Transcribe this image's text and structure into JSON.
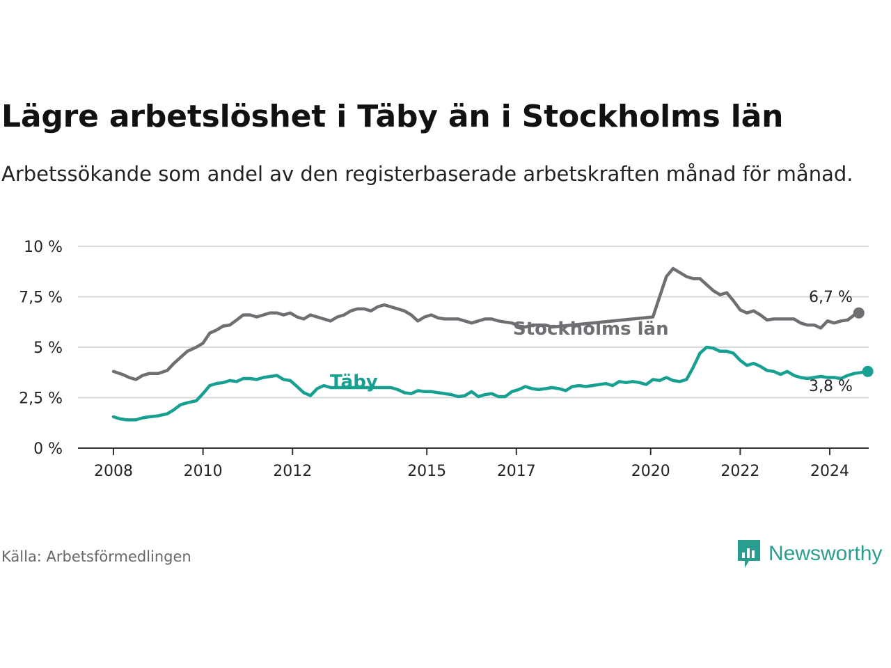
{
  "title": "Lägre arbetslöshet i Täby än i Stockholms län",
  "subtitle": "Arbetssökande som andel av den registerbaserade arbetskraften månad för månad.",
  "source": "Källa: Arbetsförmedlingen",
  "brand": "Newsworthy",
  "colors": {
    "stockholm": "#6e6e73",
    "taby": "#17a091",
    "grid": "#d8d8d8",
    "axis": "#333333",
    "brand": "#2a9d8f"
  },
  "chart_data": {
    "type": "line",
    "ylim": [
      0,
      10
    ],
    "xlim": [
      2008.0,
      2025.0
    ],
    "y_ticks": [
      {
        "value": 0,
        "label": "0 %"
      },
      {
        "value": 2.5,
        "label": "2,5 %"
      },
      {
        "value": 5,
        "label": "5 %"
      },
      {
        "value": 7.5,
        "label": "7,5 %"
      },
      {
        "value": 10,
        "label": "10 %"
      }
    ],
    "x_ticks": [
      {
        "value": 2008,
        "label": "2008"
      },
      {
        "value": 2010,
        "label": "2010"
      },
      {
        "value": 2012,
        "label": "2012"
      },
      {
        "value": 2015,
        "label": "2015"
      },
      {
        "value": 2017,
        "label": "2017"
      },
      {
        "value": 2020,
        "label": "2020"
      },
      {
        "value": 2022,
        "label": "2022"
      },
      {
        "value": 2024,
        "label": "2024"
      }
    ],
    "series": [
      {
        "key": "stockholm",
        "name": "Stockholms län",
        "end_label": "6,7 %",
        "gaps": [
          [
            2016.95,
            2019.95
          ]
        ],
        "points": [
          [
            2008.0,
            3.8
          ],
          [
            2008.2,
            3.65
          ],
          [
            2008.35,
            3.5
          ],
          [
            2008.5,
            3.4
          ],
          [
            2008.65,
            3.6
          ],
          [
            2008.8,
            3.7
          ],
          [
            2009.0,
            3.7
          ],
          [
            2009.2,
            3.85
          ],
          [
            2009.35,
            4.2
          ],
          [
            2009.5,
            4.5
          ],
          [
            2009.65,
            4.8
          ],
          [
            2009.85,
            5.0
          ],
          [
            2010.0,
            5.2
          ],
          [
            2010.15,
            5.7
          ],
          [
            2010.3,
            5.85
          ],
          [
            2010.45,
            6.05
          ],
          [
            2010.6,
            6.1
          ],
          [
            2010.75,
            6.35
          ],
          [
            2010.9,
            6.6
          ],
          [
            2011.05,
            6.6
          ],
          [
            2011.2,
            6.5
          ],
          [
            2011.35,
            6.6
          ],
          [
            2011.5,
            6.7
          ],
          [
            2011.65,
            6.7
          ],
          [
            2011.8,
            6.6
          ],
          [
            2011.95,
            6.7
          ],
          [
            2012.1,
            6.5
          ],
          [
            2012.25,
            6.4
          ],
          [
            2012.4,
            6.6
          ],
          [
            2012.55,
            6.5
          ],
          [
            2012.7,
            6.4
          ],
          [
            2012.85,
            6.3
          ],
          [
            2013.0,
            6.5
          ],
          [
            2013.15,
            6.6
          ],
          [
            2013.3,
            6.8
          ],
          [
            2013.45,
            6.9
          ],
          [
            2013.6,
            6.9
          ],
          [
            2013.75,
            6.8
          ],
          [
            2013.9,
            7.0
          ],
          [
            2014.05,
            7.1
          ],
          [
            2014.2,
            7.0
          ],
          [
            2014.35,
            6.9
          ],
          [
            2014.5,
            6.8
          ],
          [
            2014.65,
            6.6
          ],
          [
            2014.8,
            6.3
          ],
          [
            2014.95,
            6.5
          ],
          [
            2015.1,
            6.6
          ],
          [
            2015.25,
            6.45
          ],
          [
            2015.4,
            6.4
          ],
          [
            2015.55,
            6.4
          ],
          [
            2015.7,
            6.4
          ],
          [
            2015.85,
            6.3
          ],
          [
            2016.0,
            6.2
          ],
          [
            2016.15,
            6.3
          ],
          [
            2016.3,
            6.4
          ],
          [
            2016.45,
            6.4
          ],
          [
            2016.6,
            6.3
          ],
          [
            2016.75,
            6.25
          ],
          [
            2016.9,
            6.2
          ],
          [
            2017.05,
            6.05
          ],
          [
            2017.2,
            6.0
          ],
          [
            2017.35,
            6.1
          ],
          [
            2017.5,
            6.1
          ],
          [
            2017.65,
            6.1
          ],
          [
            2017.8,
            6.0
          ],
          [
            2020.05,
            6.5
          ],
          [
            2020.2,
            7.5
          ],
          [
            2020.35,
            8.5
          ],
          [
            2020.5,
            8.9
          ],
          [
            2020.65,
            8.7
          ],
          [
            2020.8,
            8.5
          ],
          [
            2020.95,
            8.4
          ],
          [
            2021.1,
            8.4
          ],
          [
            2021.25,
            8.1
          ],
          [
            2021.4,
            7.8
          ],
          [
            2021.55,
            7.6
          ],
          [
            2021.7,
            7.7
          ],
          [
            2021.85,
            7.3
          ],
          [
            2022.0,
            6.85
          ],
          [
            2022.15,
            6.7
          ],
          [
            2022.3,
            6.8
          ],
          [
            2022.45,
            6.6
          ],
          [
            2022.6,
            6.35
          ],
          [
            2022.75,
            6.4
          ],
          [
            2022.9,
            6.4
          ],
          [
            2023.05,
            6.4
          ],
          [
            2023.2,
            6.4
          ],
          [
            2023.35,
            6.2
          ],
          [
            2023.5,
            6.1
          ],
          [
            2023.65,
            6.1
          ],
          [
            2023.8,
            5.95
          ],
          [
            2023.95,
            6.3
          ],
          [
            2024.1,
            6.2
          ],
          [
            2024.25,
            6.3
          ],
          [
            2024.4,
            6.35
          ],
          [
            2024.55,
            6.6
          ],
          [
            2024.65,
            6.7
          ]
        ]
      },
      {
        "key": "taby",
        "name": "Täby",
        "end_label": "3,8 %",
        "gaps": [
          [
            2012.8,
            2014.0
          ]
        ],
        "points": [
          [
            2008.0,
            1.55
          ],
          [
            2008.15,
            1.45
          ],
          [
            2008.3,
            1.4
          ],
          [
            2008.5,
            1.4
          ],
          [
            2008.65,
            1.5
          ],
          [
            2008.8,
            1.55
          ],
          [
            2009.0,
            1.6
          ],
          [
            2009.2,
            1.7
          ],
          [
            2009.35,
            1.9
          ],
          [
            2009.5,
            2.15
          ],
          [
            2009.65,
            2.25
          ],
          [
            2009.85,
            2.35
          ],
          [
            2010.0,
            2.7
          ],
          [
            2010.15,
            3.1
          ],
          [
            2010.3,
            3.2
          ],
          [
            2010.45,
            3.25
          ],
          [
            2010.6,
            3.35
          ],
          [
            2010.75,
            3.3
          ],
          [
            2010.9,
            3.45
          ],
          [
            2011.05,
            3.45
          ],
          [
            2011.2,
            3.4
          ],
          [
            2011.35,
            3.5
          ],
          [
            2011.5,
            3.55
          ],
          [
            2011.65,
            3.6
          ],
          [
            2011.8,
            3.4
          ],
          [
            2011.95,
            3.35
          ],
          [
            2012.1,
            3.05
          ],
          [
            2012.25,
            2.75
          ],
          [
            2012.4,
            2.6
          ],
          [
            2012.55,
            2.95
          ],
          [
            2012.7,
            3.1
          ],
          [
            2012.85,
            3.0
          ],
          [
            2014.2,
            3.0
          ],
          [
            2014.35,
            2.9
          ],
          [
            2014.5,
            2.75
          ],
          [
            2014.65,
            2.7
          ],
          [
            2014.8,
            2.85
          ],
          [
            2014.95,
            2.8
          ],
          [
            2015.1,
            2.8
          ],
          [
            2015.25,
            2.75
          ],
          [
            2015.4,
            2.7
          ],
          [
            2015.55,
            2.65
          ],
          [
            2015.7,
            2.55
          ],
          [
            2015.85,
            2.6
          ],
          [
            2016.0,
            2.8
          ],
          [
            2016.15,
            2.55
          ],
          [
            2016.3,
            2.65
          ],
          [
            2016.45,
            2.7
          ],
          [
            2016.6,
            2.55
          ],
          [
            2016.75,
            2.55
          ],
          [
            2016.9,
            2.8
          ],
          [
            2017.05,
            2.9
          ],
          [
            2017.2,
            3.05
          ],
          [
            2017.35,
            2.95
          ],
          [
            2017.5,
            2.9
          ],
          [
            2017.65,
            2.95
          ],
          [
            2017.8,
            3.0
          ],
          [
            2017.95,
            2.95
          ],
          [
            2018.1,
            2.85
          ],
          [
            2018.25,
            3.05
          ],
          [
            2018.4,
            3.1
          ],
          [
            2018.55,
            3.05
          ],
          [
            2018.7,
            3.1
          ],
          [
            2018.85,
            3.15
          ],
          [
            2019.0,
            3.2
          ],
          [
            2019.15,
            3.1
          ],
          [
            2019.3,
            3.3
          ],
          [
            2019.45,
            3.25
          ],
          [
            2019.6,
            3.3
          ],
          [
            2019.75,
            3.25
          ],
          [
            2019.9,
            3.15
          ],
          [
            2020.05,
            3.4
          ],
          [
            2020.2,
            3.35
          ],
          [
            2020.35,
            3.5
          ],
          [
            2020.5,
            3.35
          ],
          [
            2020.65,
            3.3
          ],
          [
            2020.8,
            3.4
          ],
          [
            2020.95,
            4.0
          ],
          [
            2021.1,
            4.7
          ],
          [
            2021.25,
            5.0
          ],
          [
            2021.4,
            4.95
          ],
          [
            2021.55,
            4.8
          ],
          [
            2021.7,
            4.8
          ],
          [
            2021.85,
            4.7
          ],
          [
            2022.0,
            4.35
          ],
          [
            2022.15,
            4.1
          ],
          [
            2022.3,
            4.2
          ],
          [
            2022.45,
            4.05
          ],
          [
            2022.6,
            3.85
          ],
          [
            2022.75,
            3.8
          ],
          [
            2022.9,
            3.65
          ],
          [
            2023.05,
            3.8
          ],
          [
            2023.2,
            3.6
          ],
          [
            2023.35,
            3.5
          ],
          [
            2023.5,
            3.45
          ],
          [
            2023.65,
            3.5
          ],
          [
            2023.8,
            3.55
          ],
          [
            2023.95,
            3.5
          ],
          [
            2024.1,
            3.5
          ],
          [
            2024.25,
            3.45
          ],
          [
            2024.4,
            3.6
          ],
          [
            2024.55,
            3.7
          ],
          [
            2024.7,
            3.75
          ],
          [
            2024.85,
            3.8
          ]
        ]
      }
    ]
  }
}
